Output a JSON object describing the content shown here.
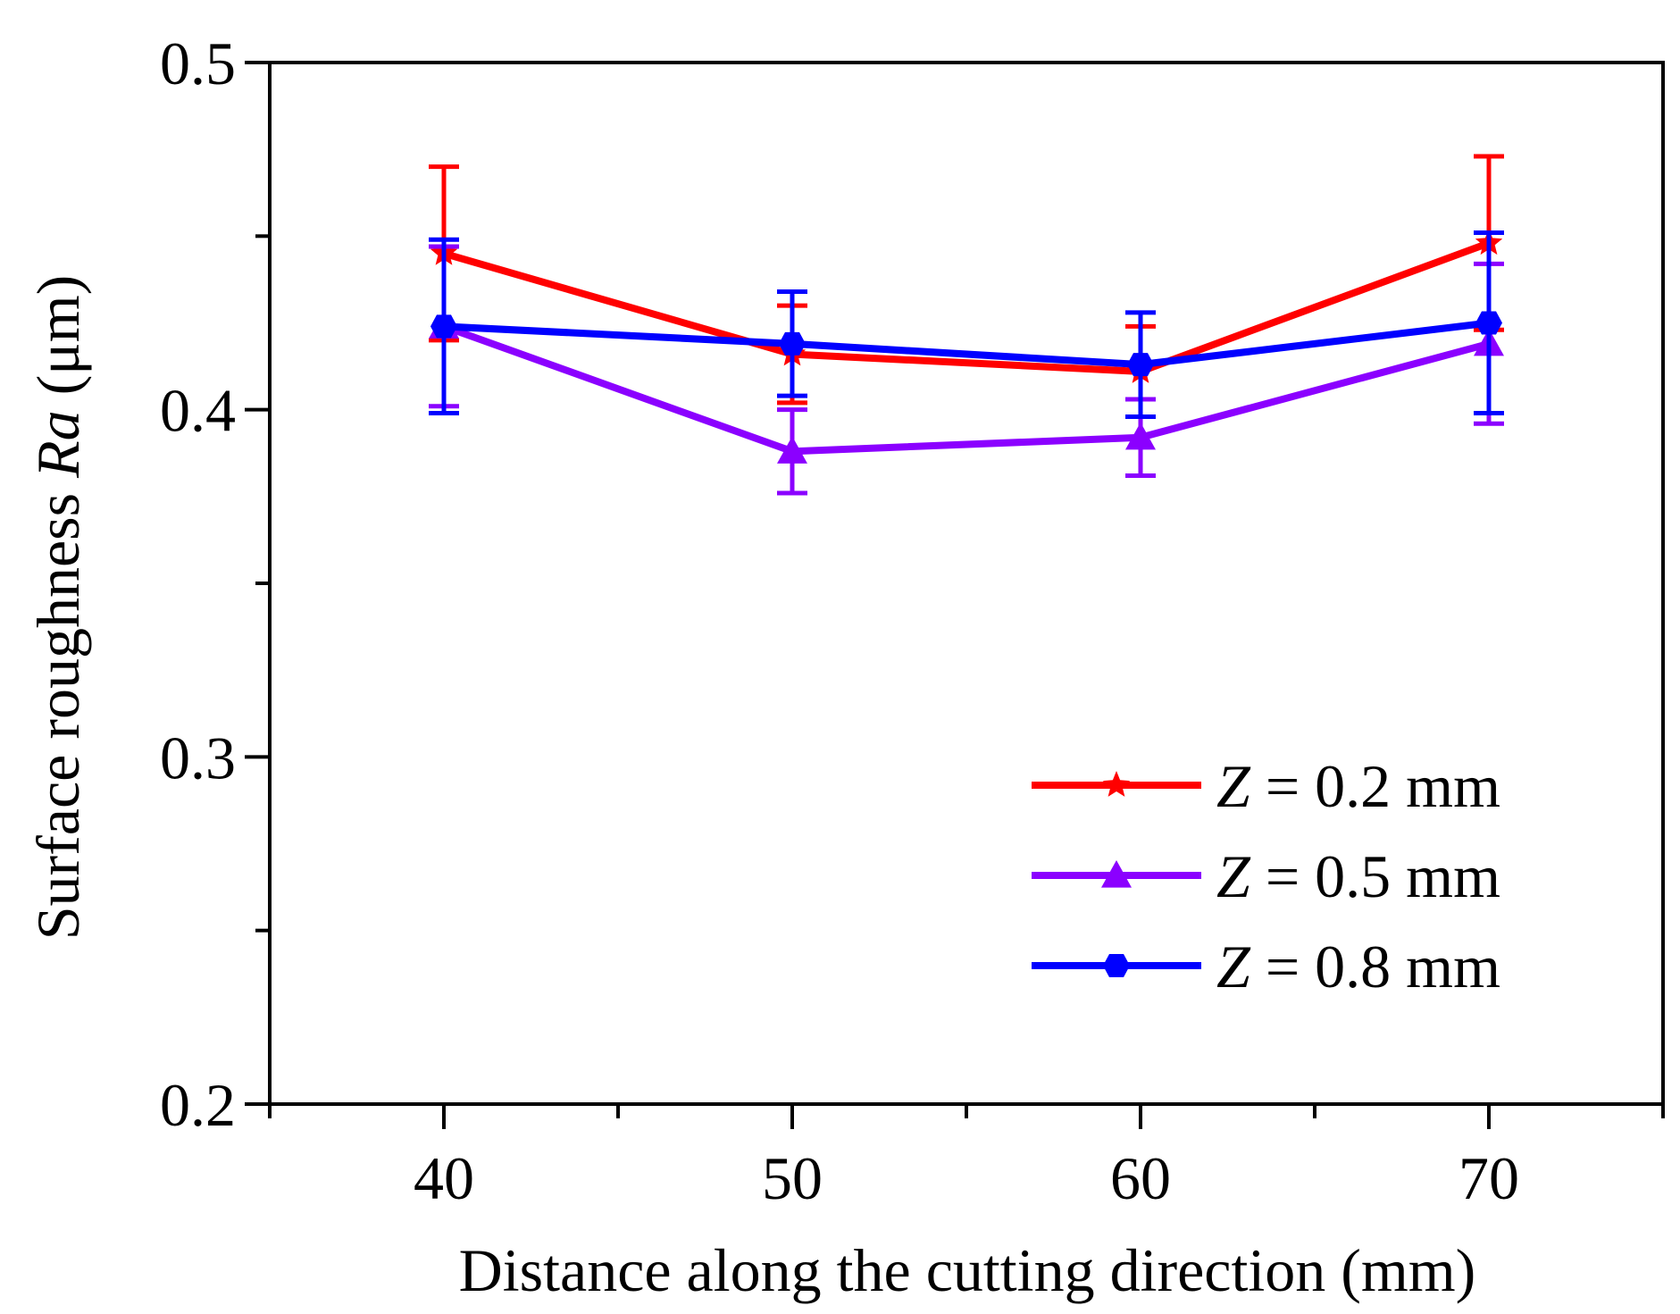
{
  "chart_data": {
    "type": "line",
    "title": "",
    "xlabel": "Distance along the cutting direction (mm)",
    "ylabel": {
      "prefix": "Surface roughness ",
      "italic": "Ra",
      "suffix": " (μm)"
    },
    "xlim": [
      35,
      75
    ],
    "ylim": [
      0.2,
      0.5
    ],
    "x_ticks": [
      40,
      50,
      60,
      70
    ],
    "x_tick_labels": [
      "40",
      "50",
      "60",
      "70"
    ],
    "x_minor_ticks": [
      35,
      45,
      55,
      65,
      75
    ],
    "y_ticks": [
      0.2,
      0.3,
      0.4,
      0.5
    ],
    "y_tick_labels": [
      "0.2",
      "0.3",
      "0.4",
      "0.5"
    ],
    "y_minor_ticks": [
      0.25,
      0.35,
      0.45
    ],
    "legend_position": "bottom-right",
    "x": [
      40,
      50,
      60,
      70
    ],
    "series": [
      {
        "name": "Z = 0.2 mm",
        "legend_italic": "Z",
        "legend_rest": " = 0.2 mm",
        "color": "#ff0000",
        "marker": "star",
        "values": [
          0.445,
          0.416,
          0.411,
          0.448
        ],
        "error": [
          0.025,
          0.014,
          0.013,
          0.025
        ]
      },
      {
        "name": "Z = 0.5 mm",
        "legend_italic": "Z",
        "legend_rest": " = 0.5 mm",
        "color": "#8b00ff",
        "marker": "triangle",
        "values": [
          0.424,
          0.388,
          0.392,
          0.419
        ],
        "error": [
          0.023,
          0.012,
          0.011,
          0.023
        ]
      },
      {
        "name": "Z = 0.8 mm",
        "legend_italic": "Z",
        "legend_rest": " = 0.8 mm",
        "color": "#0000ff",
        "marker": "circle",
        "values": [
          0.424,
          0.419,
          0.413,
          0.425
        ],
        "error": [
          0.025,
          0.015,
          0.015,
          0.026
        ]
      }
    ]
  }
}
